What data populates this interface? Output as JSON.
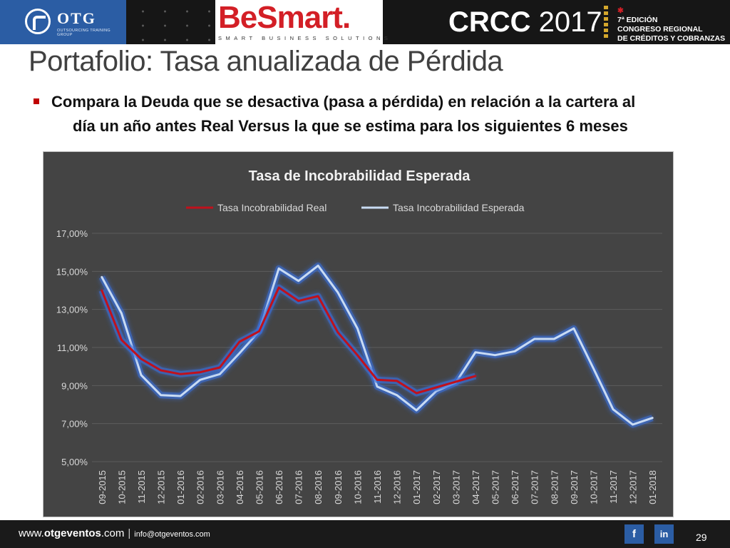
{
  "header": {
    "otg_name": "OTG",
    "otg_sub": "OUTSOURCING TRAINING GROUP",
    "besmart": "BeSmart.",
    "besmart_sub": "SMART BUSINESS SOLUTIONS",
    "crcc_bold": "CRCC",
    "crcc_year": "2017",
    "event_line1": "7ª EDICIÓN",
    "event_line2": "CONGRESO REGIONAL",
    "event_line3": "DE CRÉDITOS Y COBRANZAS"
  },
  "slide": {
    "title": "Portafolio: Tasa anualizada de Pérdida",
    "bullet_line1": "Compara la Deuda que se desactiva (pasa a pérdida) en relación a la cartera  al",
    "bullet_line2": "día un año antes Real Versus la que se estima para los siguientes 6 meses",
    "page_number": "29"
  },
  "footer": {
    "url_prefix": "www.",
    "url_domain": "otgeventos",
    "url_suffix": ".com",
    "email": "info@otgeventos.com",
    "facebook": "f",
    "linkedin": "in"
  },
  "colors": {
    "real": "#c0111c",
    "esperada": "#c9dbf3",
    "plot_bg": "#444444",
    "accent": "#c00000"
  },
  "chart_data": {
    "type": "line",
    "title": "Tasa de Incobrabilidad Esperada",
    "xlabel": "",
    "ylabel": "",
    "legend_position": "top",
    "grid": true,
    "ylim": [
      5,
      17
    ],
    "yticks": [
      "5,00%",
      "7,00%",
      "9,00%",
      "11,00%",
      "13,00%",
      "15,00%",
      "17,00%"
    ],
    "categories": [
      "09-2015",
      "10-2015",
      "11-2015",
      "12-2015",
      "01-2016",
      "02-2016",
      "03-2016",
      "04-2016",
      "05-2016",
      "06-2016",
      "07-2016",
      "08-2016",
      "09-2016",
      "10-2016",
      "11-2016",
      "12-2016",
      "01-2017",
      "02-2017",
      "03-2017",
      "04-2017",
      "05-2017",
      "06-2017",
      "07-2017",
      "08-2017",
      "09-2017",
      "10-2017",
      "11-2017",
      "12-2017",
      "01-2018"
    ],
    "series": [
      {
        "name": "Tasa Incobrabilidad Real",
        "color": "#c0111c",
        "values": [
          14.0,
          11.4,
          10.4,
          9.8,
          9.6,
          9.7,
          9.95,
          11.3,
          11.85,
          14.15,
          13.45,
          13.7,
          11.8,
          10.6,
          9.3,
          9.25,
          8.6,
          8.9,
          9.2,
          9.5,
          null,
          null,
          null,
          null,
          null,
          null,
          null,
          null,
          null
        ]
      },
      {
        "name": "Tasa Incobrabilidad Esperada",
        "color": "#c9dbf3",
        "values": [
          14.7,
          12.8,
          9.55,
          8.5,
          8.45,
          9.3,
          9.6,
          10.7,
          11.85,
          15.15,
          14.5,
          15.3,
          13.9,
          12.0,
          8.95,
          8.5,
          7.7,
          8.7,
          9.15,
          10.75,
          10.6,
          10.8,
          11.45,
          11.45,
          12.0,
          9.9,
          7.75,
          6.95,
          7.3
        ]
      }
    ]
  }
}
